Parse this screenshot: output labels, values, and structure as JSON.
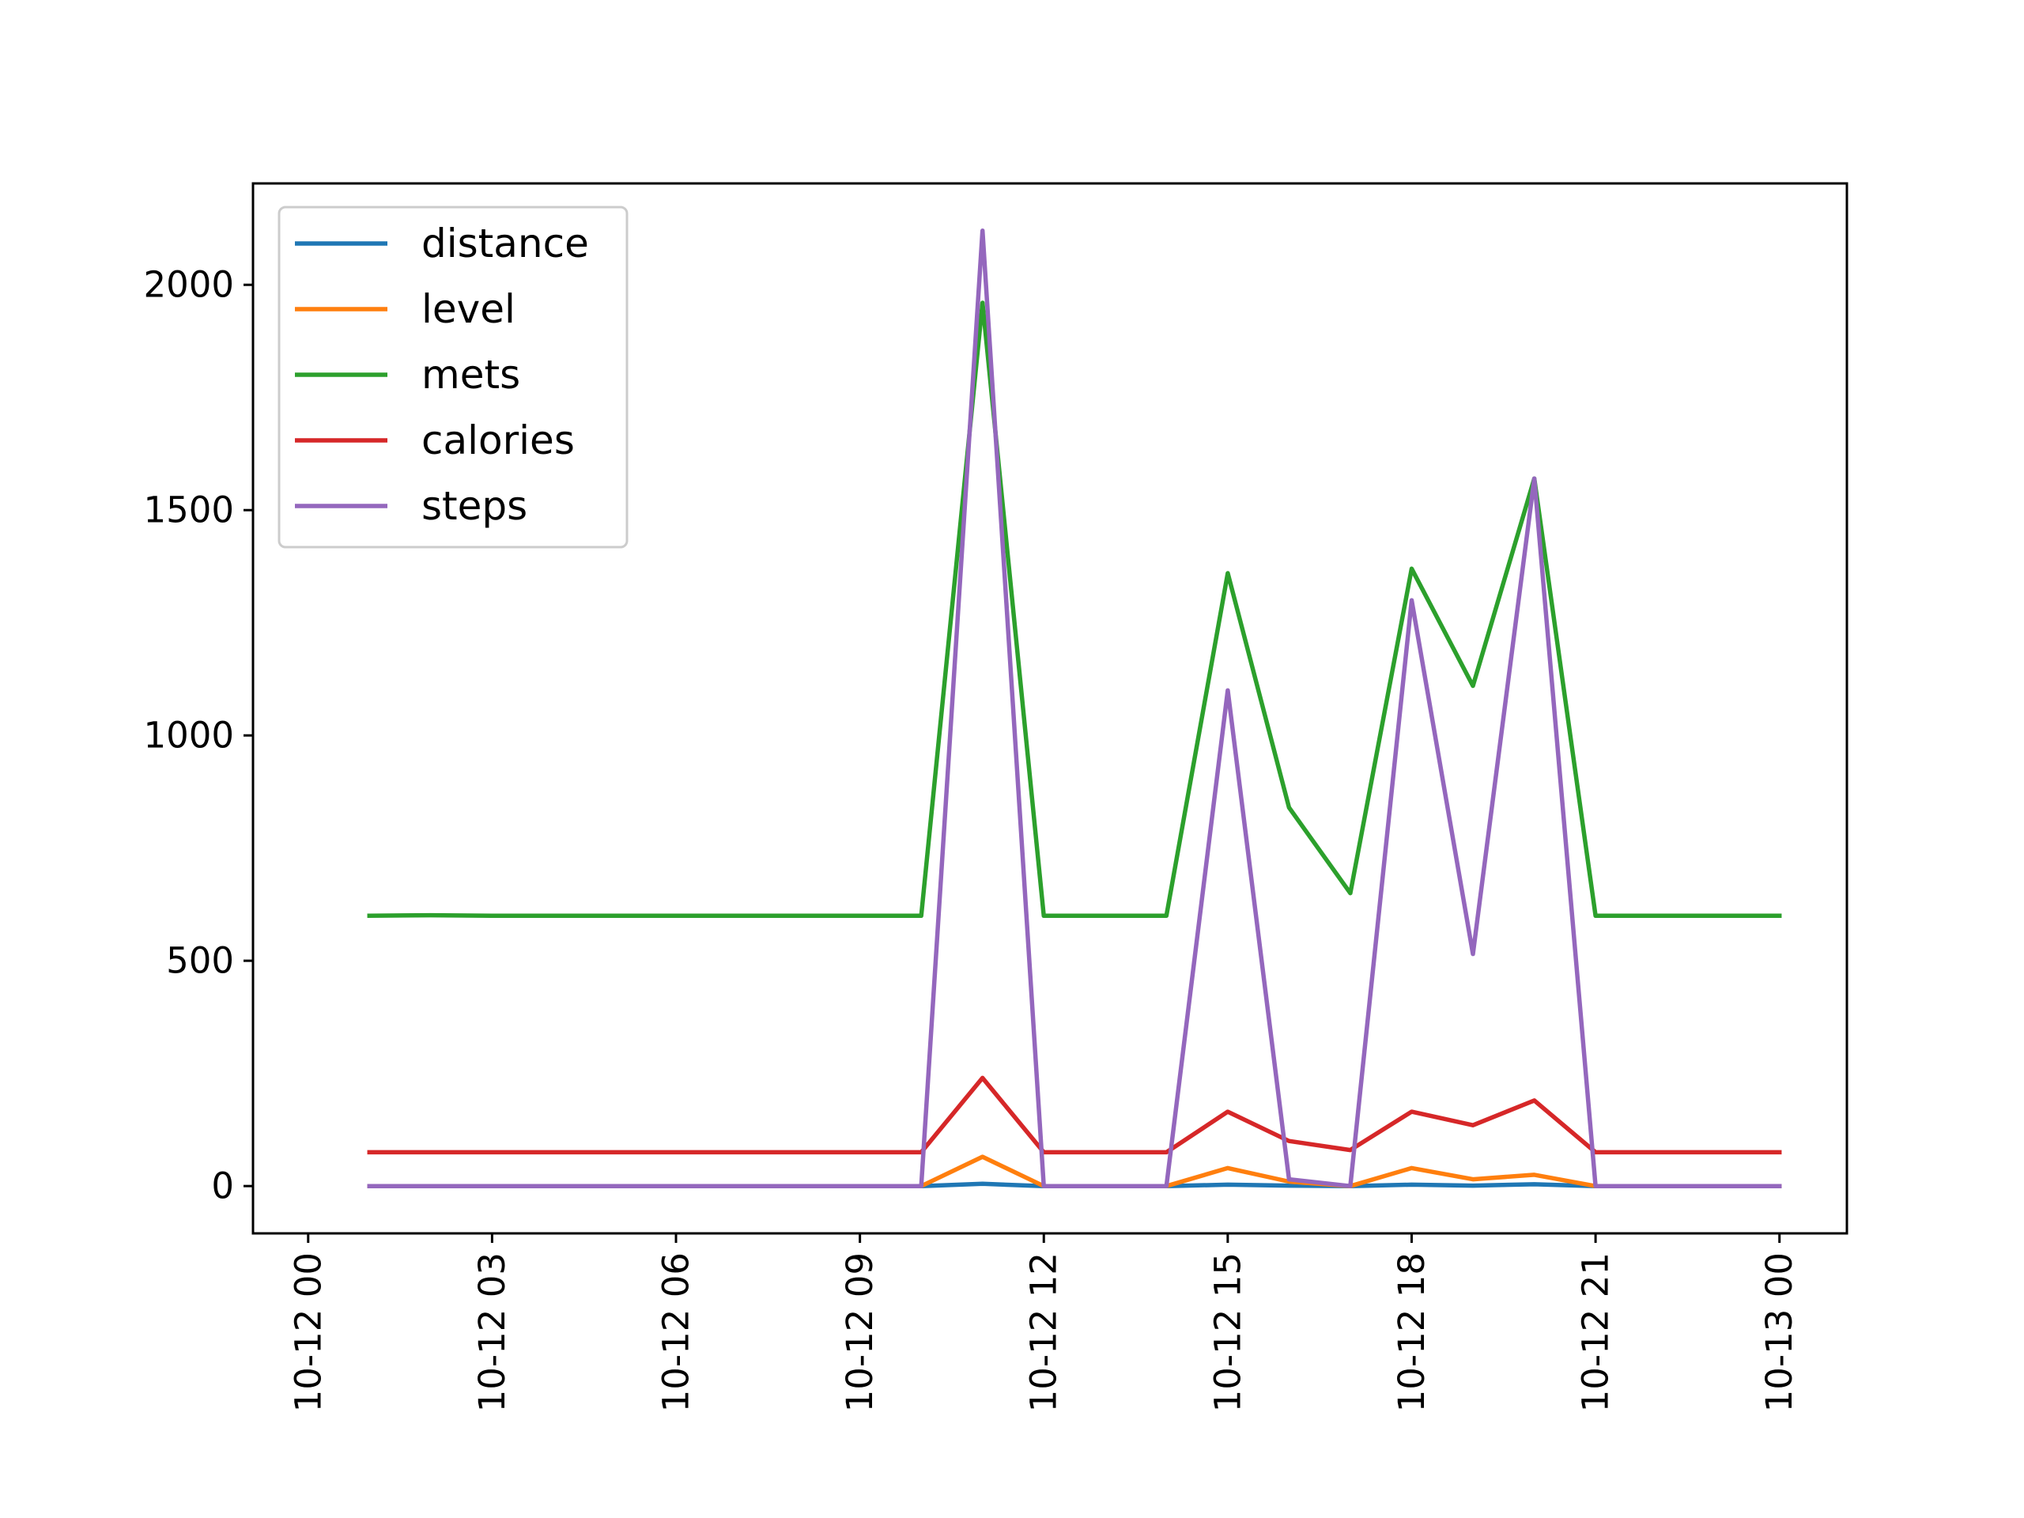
{
  "chart_data": {
    "type": "line",
    "title": "",
    "xlabel": "",
    "ylabel": "",
    "x": [
      "10-12 01",
      "10-12 02",
      "10-12 03",
      "10-12 04",
      "10-12 05",
      "10-12 06",
      "10-12 07",
      "10-12 08",
      "10-12 09",
      "10-12 10",
      "10-12 11",
      "10-12 12",
      "10-12 13",
      "10-12 14",
      "10-12 15",
      "10-12 16",
      "10-12 17",
      "10-12 18",
      "10-12 19",
      "10-12 20",
      "10-12 21",
      "10-12 22",
      "10-12 23",
      "10-13 00"
    ],
    "x_ticks": [
      "10-12 00",
      "10-12 03",
      "10-12 06",
      "10-12 09",
      "10-12 12",
      "10-12 15",
      "10-12 18",
      "10-12 21",
      "10-13 00"
    ],
    "xlim": [
      "10-12 00",
      "10-13 00"
    ],
    "y_ticks": [
      0,
      500,
      1000,
      1500,
      2000
    ],
    "ylim": [
      -105,
      2225
    ],
    "legend_position": "top-left",
    "grid": false,
    "series": [
      {
        "name": "distance",
        "color": "#1f77b4",
        "values": [
          0,
          0,
          0,
          0,
          0,
          0,
          0,
          0,
          0,
          0,
          5,
          0,
          0,
          0,
          3,
          1,
          0,
          3,
          1,
          4,
          0,
          0,
          0,
          0
        ]
      },
      {
        "name": "level",
        "color": "#ff7f0e",
        "values": [
          0,
          0,
          0,
          0,
          0,
          0,
          0,
          0,
          0,
          0,
          65,
          0,
          0,
          0,
          40,
          10,
          0,
          40,
          15,
          25,
          0,
          0,
          0,
          0
        ]
      },
      {
        "name": "mets",
        "color": "#2ca02c",
        "values": [
          600,
          601,
          600,
          600,
          600,
          600,
          600,
          600,
          600,
          600,
          1960,
          600,
          600,
          600,
          1360,
          840,
          650,
          1370,
          1110,
          1570,
          600,
          600,
          600,
          600
        ]
      },
      {
        "name": "calories",
        "color": "#d62728",
        "values": [
          75,
          75,
          75,
          75,
          75,
          75,
          75,
          75,
          75,
          75,
          240,
          75,
          75,
          75,
          165,
          100,
          80,
          165,
          135,
          190,
          75,
          75,
          75,
          75
        ]
      },
      {
        "name": "steps",
        "color": "#9467bd",
        "values": [
          0,
          0,
          0,
          0,
          0,
          0,
          0,
          0,
          0,
          0,
          2120,
          0,
          0,
          0,
          1100,
          15,
          0,
          1300,
          515,
          1570,
          0,
          0,
          0,
          0
        ]
      }
    ]
  }
}
